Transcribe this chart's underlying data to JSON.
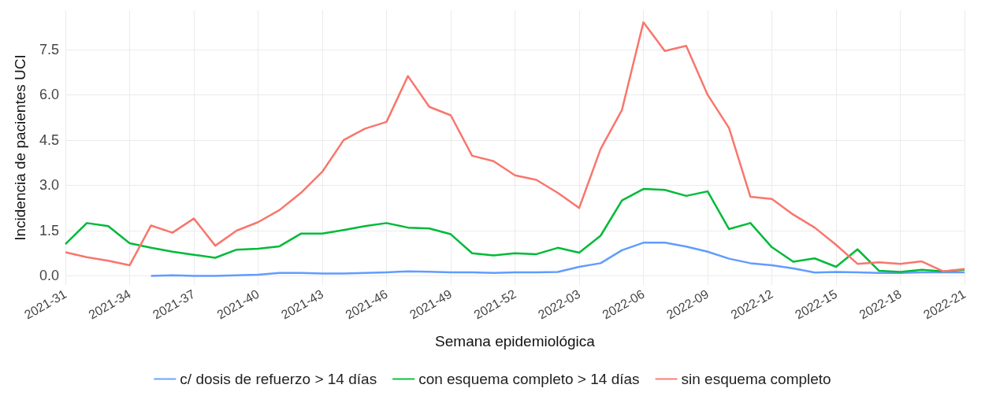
{
  "chart_data": {
    "type": "line",
    "xlabel": "Semana epidemiológica",
    "ylabel": "Incidencia de pacientes UCI",
    "categories": [
      "2021-31",
      null,
      null,
      "2021-34",
      null,
      null,
      "2021-37",
      null,
      null,
      "2021-40",
      null,
      null,
      "2021-43",
      null,
      null,
      "2021-46",
      null,
      null,
      "2021-49",
      null,
      null,
      "2021-52",
      null,
      null,
      "2022-03",
      null,
      null,
      "2022-06",
      null,
      null,
      "2022-09",
      null,
      null,
      "2022-12",
      null,
      null,
      "2022-15",
      null,
      null,
      "2022-18",
      null,
      null,
      "2022-21"
    ],
    "series": [
      {
        "name": "c/ dosis de refuerzo > 14 días",
        "color": "#619cff",
        "values": [
          null,
          null,
          null,
          null,
          0.0,
          0.02,
          0.0,
          0.0,
          0.02,
          0.04,
          0.1,
          0.1,
          0.08,
          0.08,
          0.1,
          0.12,
          0.15,
          0.14,
          0.12,
          0.12,
          0.1,
          0.12,
          0.12,
          0.13,
          0.3,
          0.42,
          0.85,
          1.1,
          1.1,
          0.97,
          0.8,
          0.57,
          0.42,
          0.35,
          0.25,
          0.11,
          0.13,
          0.12,
          0.1,
          0.1,
          0.12,
          0.12,
          0.12
        ]
      },
      {
        "name": "con esquema completo > 14 días",
        "color": "#00ba38",
        "values": [
          1.05,
          1.75,
          1.65,
          1.08,
          0.93,
          0.8,
          0.7,
          0.6,
          0.87,
          0.9,
          0.98,
          1.4,
          1.4,
          1.52,
          1.65,
          1.75,
          1.6,
          1.57,
          1.38,
          0.75,
          0.68,
          0.75,
          0.72,
          0.93,
          0.77,
          1.33,
          2.5,
          2.88,
          2.85,
          2.65,
          2.8,
          1.55,
          1.75,
          0.95,
          0.47,
          0.58,
          0.3,
          0.88,
          0.17,
          0.13,
          0.2,
          0.15,
          0.2
        ]
      },
      {
        "name": "sin esquema completo",
        "color": "#f8766d",
        "values": [
          0.78,
          0.62,
          0.5,
          0.35,
          1.67,
          1.43,
          1.9,
          1.0,
          1.5,
          1.78,
          2.18,
          2.75,
          3.45,
          4.5,
          4.88,
          5.1,
          6.62,
          5.6,
          5.32,
          3.98,
          3.8,
          3.33,
          3.18,
          2.75,
          2.25,
          4.2,
          5.5,
          8.4,
          7.45,
          7.62,
          6.0,
          4.9,
          2.62,
          2.55,
          2.03,
          1.6,
          1.03,
          0.4,
          0.45,
          0.4,
          0.48,
          0.15,
          0.23
        ]
      }
    ],
    "ylim": [
      -0.3,
      8.8
    ],
    "yticks": [
      {
        "value": 0,
        "label": "0.0"
      },
      1.5,
      {
        "value": 3,
        "label": "3.0"
      },
      4.5,
      {
        "value": 6,
        "label": "6.0"
      },
      7.5
    ],
    "grid": true,
    "legend": "bottom",
    "marker": "none",
    "line_style": "solid"
  }
}
